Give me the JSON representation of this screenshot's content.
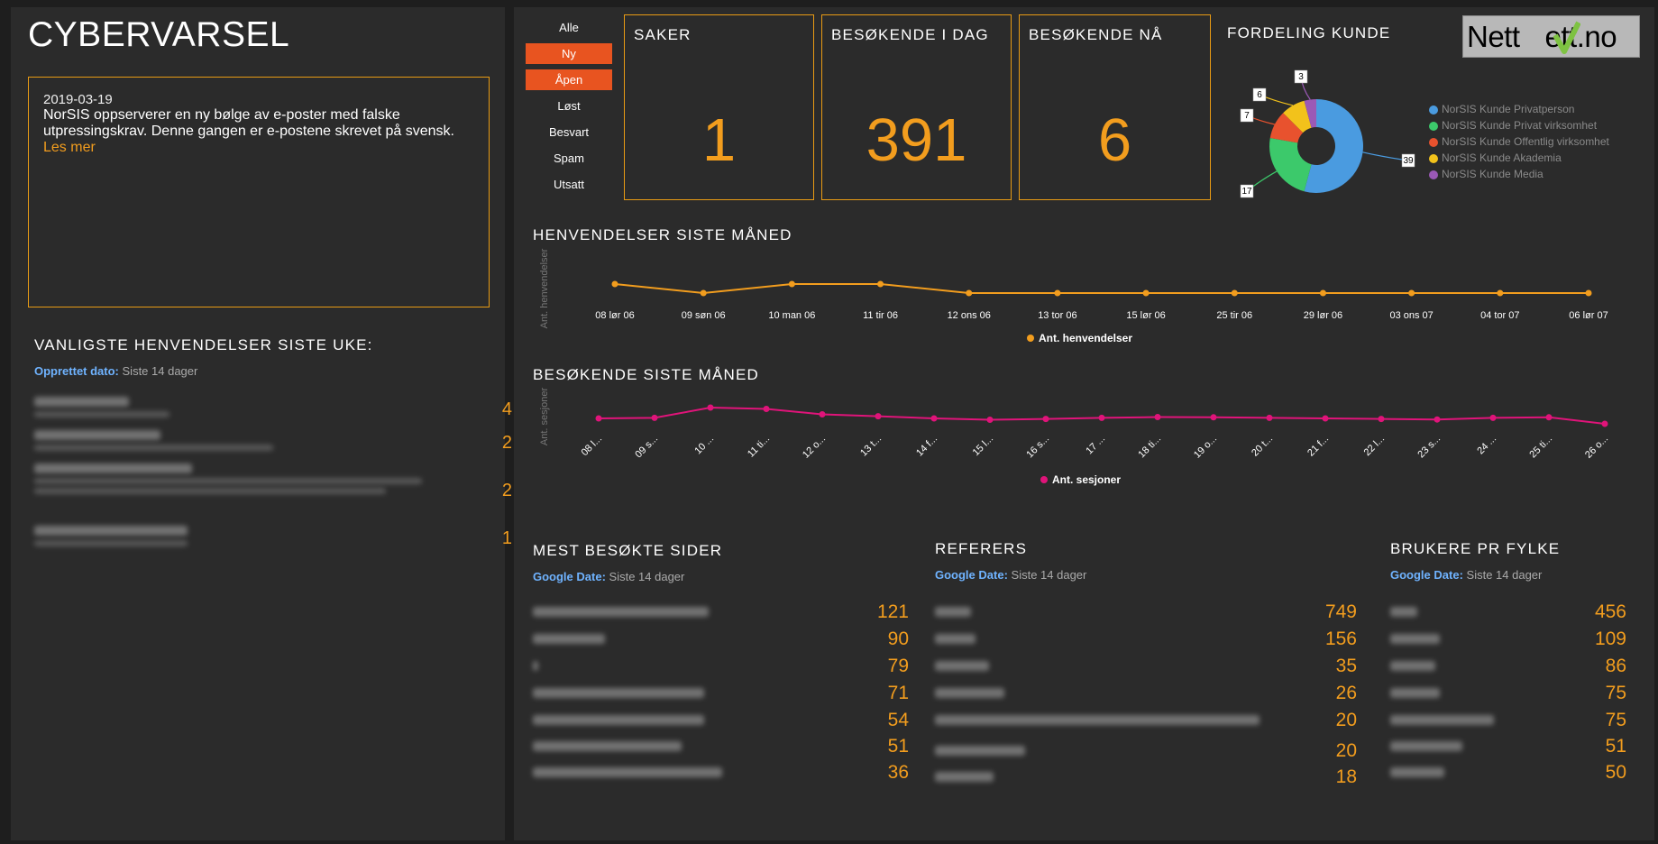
{
  "left": {
    "title": "CYBERVARSEL",
    "alert": {
      "date": "2019-03-19",
      "text": "NorSIS oppserverer en ny bølge av e-poster med falske utpressingskrav. Denne gangen er e-postene skrevet på svensk.",
      "link": "Les mer"
    },
    "common_heading": "VANLIGSTE HENVENDELSER SISTE UKE:",
    "filter_key": "Opprettet dato:",
    "filter_val": "Siste 14 dager",
    "common_values": [
      "4",
      "2",
      "2",
      "1"
    ]
  },
  "status_filters": [
    {
      "label": "Alle",
      "active": false
    },
    {
      "label": "Ny",
      "active": true
    },
    {
      "label": "Åpen",
      "active": true
    },
    {
      "label": "Løst",
      "active": false
    },
    {
      "label": "Besvart",
      "active": false
    },
    {
      "label": "Spam",
      "active": false
    },
    {
      "label": "Utsatt",
      "active": false
    }
  ],
  "kpis": [
    {
      "label": "SAKER",
      "value": "1"
    },
    {
      "label": "BESØKENDE I DAG",
      "value": "391"
    },
    {
      "label": "BESØKENDE NÅ",
      "value": "6"
    }
  ],
  "logo": {
    "text_left": "Nett",
    "text_right": "ett.no",
    "check_color": "#7ec242"
  },
  "donut": {
    "title": "FORDELING KUNDE",
    "legend": [
      {
        "name": "NorSIS Kunde Privatperson",
        "color": "#4a9be0",
        "value": "39"
      },
      {
        "name": "NorSIS Kunde Privat virksomhet",
        "color": "#3cc96b",
        "value": "17"
      },
      {
        "name": "NorSIS Kunde Offentlig virksomhet",
        "color": "#e8522e",
        "value": "7"
      },
      {
        "name": "NorSIS Kunde Akademia",
        "color": "#f2c21b",
        "value": "6"
      },
      {
        "name": "NorSIS Kunde Media",
        "color": "#9b59b6",
        "value": "3"
      }
    ]
  },
  "henvendelser": {
    "title": "HENVENDELSER SISTE MÅNED",
    "ylabel": "Ant. henvendelser",
    "series_name": "Ant. henvendelser",
    "color": "#f29d1e"
  },
  "besokende": {
    "title": "BESØKENDE SISTE MÅNED",
    "ylabel": "Ant. sesjoner",
    "series_name": "Ant. sesjoner",
    "color": "#e0147a"
  },
  "chart_data": [
    {
      "type": "pie",
      "title": "FORDELING KUNDE",
      "categories": [
        "NorSIS Kunde Privatperson",
        "NorSIS Kunde Privat virksomhet",
        "NorSIS Kunde Offentlig virksomhet",
        "NorSIS Kunde Akademia",
        "NorSIS Kunde Media"
      ],
      "values": [
        39,
        17,
        7,
        6,
        3
      ],
      "legend": "right"
    },
    {
      "type": "line",
      "title": "HENVENDELSER SISTE MÅNED",
      "ylabel": "Ant. henvendelser",
      "categories": [
        "08 lør 06",
        "09 søn 06",
        "10 man 06",
        "11 tir 06",
        "12 ons 06",
        "13 tor 06",
        "15 lør 06",
        "25 tir 06",
        "29 lør 06",
        "03 ons 07",
        "04 tor 07",
        "06 lør 07"
      ],
      "series": [
        {
          "name": "Ant. henvendelser",
          "values": [
            2,
            1,
            2,
            2,
            1,
            1,
            1,
            1,
            1,
            1,
            1,
            1
          ]
        }
      ],
      "legend": "bottom"
    },
    {
      "type": "line",
      "title": "BESØKENDE SISTE MÅNED",
      "ylabel": "Ant. sesjoner",
      "categories": [
        "08 l...",
        "09 s...",
        "10 ...",
        "11 ti...",
        "12 o...",
        "13 t...",
        "14 f...",
        "15 l...",
        "16 s...",
        "17 ...",
        "18 ti...",
        "19 o...",
        "20 t...",
        "21 f...",
        "22 l...",
        "23 s...",
        "24 ...",
        "25 ti...",
        "26 o..."
      ],
      "series": [
        {
          "name": "Ant. sesjoner",
          "values": [
            360,
            362,
            400,
            395,
            375,
            368,
            360,
            355,
            358,
            362,
            365,
            364,
            362,
            360,
            358,
            356,
            362,
            364,
            340
          ]
        }
      ],
      "legend": "bottom"
    }
  ],
  "mest": {
    "title": "MEST BESØKTE SIDER",
    "filter_key": "Google Date:",
    "filter_val": "Siste 14 dager",
    "values": [
      "121",
      "90",
      "79",
      "71",
      "54",
      "51",
      "36"
    ]
  },
  "referers": {
    "title": "REFERERS",
    "filter_key": "Google Date:",
    "filter_val": "Siste 14 dager",
    "values": [
      "749",
      "156",
      "35",
      "26",
      "20",
      "20",
      "18"
    ]
  },
  "fylke": {
    "title": "BRUKERE PR FYLKE",
    "filter_key": "Google Date:",
    "filter_val": "Siste 14 dager",
    "values": [
      "456",
      "109",
      "86",
      "75",
      "75",
      "51",
      "50"
    ]
  }
}
